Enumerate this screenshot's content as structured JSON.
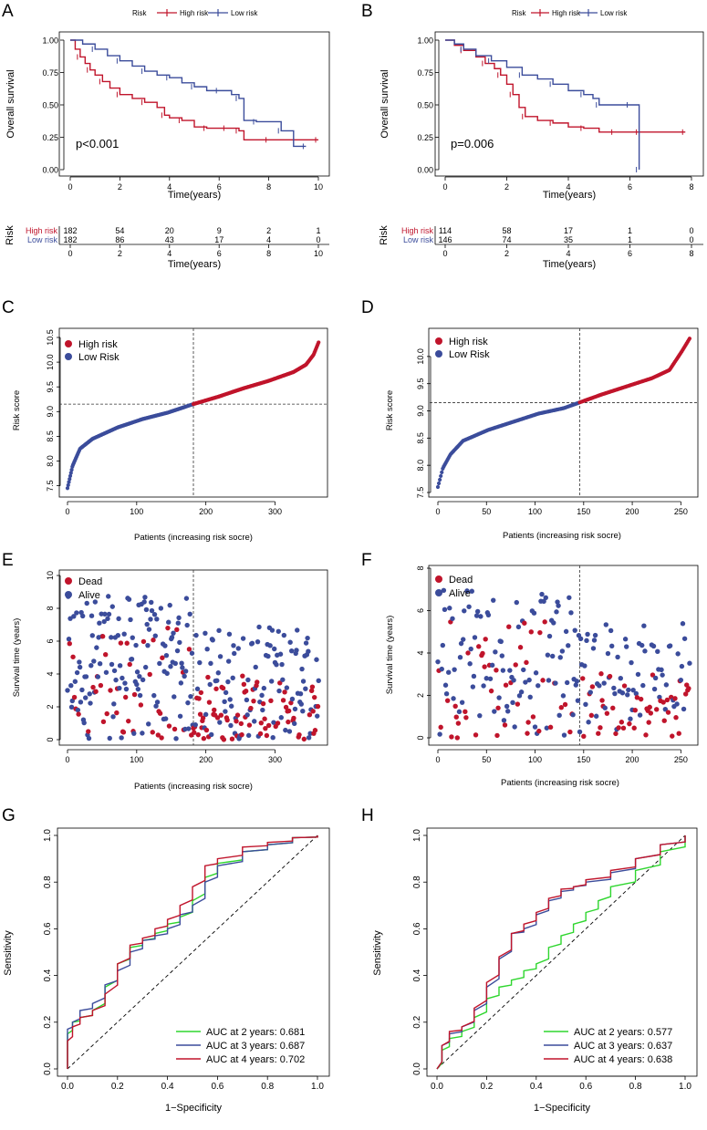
{
  "colors": {
    "high": "#C0142B",
    "low": "#3B4C9B",
    "green": "#2ED62E",
    "black": "#000000"
  },
  "chart_data": [
    {
      "panel": "A",
      "type": "line",
      "subtype": "kaplan-meier",
      "legend": {
        "title": "Risk",
        "entries": [
          "High risk",
          "Low risk"
        ]
      },
      "ylabel": "Overall survival",
      "xlabel": "Time(years)",
      "xlim": [
        0,
        10
      ],
      "ylim": [
        0,
        1
      ],
      "xticks": [
        "0",
        "2",
        "4",
        "6",
        "8",
        "10"
      ],
      "yticks": [
        "0.00",
        "0.25",
        "0.50",
        "0.75",
        "1.00"
      ],
      "pvalue": "p<0.001",
      "series": [
        {
          "name": "High risk",
          "x": [
            0,
            0.2,
            0.4,
            0.6,
            0.8,
            1,
            1.3,
            1.6,
            2,
            2.5,
            3,
            3.5,
            3.8,
            4,
            4.5,
            5,
            5.5,
            6,
            6.3,
            6.5,
            6.8,
            7,
            8,
            9,
            10
          ],
          "y": [
            1,
            0.93,
            0.87,
            0.82,
            0.77,
            0.73,
            0.68,
            0.63,
            0.58,
            0.55,
            0.52,
            0.48,
            0.42,
            0.4,
            0.38,
            0.33,
            0.32,
            0.32,
            0.32,
            0.32,
            0.3,
            0.23,
            0.23,
            0.23,
            0.23
          ]
        },
        {
          "name": "Low risk",
          "x": [
            0,
            0.5,
            1,
            1.5,
            2,
            2.5,
            3,
            3.5,
            4,
            4.5,
            5,
            5.5,
            6,
            6.5,
            6.8,
            7,
            7.5,
            8,
            8.5,
            9,
            9.5
          ],
          "y": [
            1,
            0.97,
            0.93,
            0.88,
            0.84,
            0.8,
            0.76,
            0.73,
            0.71,
            0.67,
            0.64,
            0.61,
            0.61,
            0.58,
            0.55,
            0.38,
            0.37,
            0.37,
            0.3,
            0.18,
            0.18
          ]
        }
      ],
      "risk_table": {
        "ylabel": "Risk",
        "xlabel": "Time(years)",
        "rows": [
          {
            "label": "High risk",
            "counts": [
              "182",
              "54",
              "20",
              "9",
              "2",
              "1"
            ]
          },
          {
            "label": "Low risk",
            "counts": [
              "182",
              "86",
              "43",
              "17",
              "4",
              "0"
            ]
          }
        ]
      }
    },
    {
      "panel": "B",
      "type": "line",
      "subtype": "kaplan-meier",
      "legend": {
        "title": "Risk",
        "entries": [
          "High risk",
          "Low risk"
        ]
      },
      "ylabel": "Overall survival",
      "xlabel": "Time(years)",
      "xlim": [
        0,
        8
      ],
      "ylim": [
        0,
        1
      ],
      "xticks": [
        "0",
        "2",
        "4",
        "6",
        "8"
      ],
      "yticks": [
        "0.00",
        "0.25",
        "0.50",
        "0.75",
        "1.00"
      ],
      "pvalue": "p=0.006",
      "series": [
        {
          "name": "High risk",
          "x": [
            0,
            0.3,
            0.6,
            1,
            1.3,
            1.6,
            1.8,
            2,
            2.2,
            2.4,
            2.6,
            3,
            3.5,
            4,
            4.5,
            5,
            5.5,
            6,
            6.3,
            7,
            7.8
          ],
          "y": [
            1,
            0.96,
            0.92,
            0.87,
            0.82,
            0.78,
            0.73,
            0.66,
            0.58,
            0.48,
            0.41,
            0.38,
            0.36,
            0.33,
            0.32,
            0.29,
            0.29,
            0.29,
            0.29,
            0.29,
            0.29
          ]
        },
        {
          "name": "Low risk",
          "x": [
            0,
            0.3,
            0.6,
            1,
            1.5,
            2,
            2.5,
            3,
            3.5,
            4,
            4.5,
            4.8,
            5,
            5.5,
            6,
            6.3,
            6.3
          ],
          "y": [
            1,
            0.97,
            0.93,
            0.88,
            0.84,
            0.79,
            0.73,
            0.7,
            0.66,
            0.61,
            0.58,
            0.55,
            0.5,
            0.5,
            0.5,
            0.5,
            0.0
          ]
        }
      ],
      "risk_table": {
        "ylabel": "Risk",
        "xlabel": "Time(years)",
        "rows": [
          {
            "label": "High risk",
            "counts": [
              "114",
              "58",
              "17",
              "1",
              "0"
            ]
          },
          {
            "label": "Low risk",
            "counts": [
              "146",
              "74",
              "35",
              "1",
              "0"
            ]
          }
        ]
      }
    },
    {
      "panel": "C",
      "type": "scatter",
      "subtype": "risk-score-curve",
      "legend": [
        "High risk",
        "Low Risk"
      ],
      "ylabel": "Risk score",
      "xlabel": "Patients (increasing risk socre)",
      "xlim": [
        0,
        364
      ],
      "ylim": [
        7.4,
        10.5
      ],
      "n": 364,
      "cutoff_index": 182,
      "cutoff_value": 9.15,
      "xticks": [
        "0",
        "100",
        "200",
        "300"
      ],
      "yticks": [
        "7.5",
        "8.0",
        "8.5",
        "9.0",
        "9.5",
        "10.0",
        "10.5"
      ],
      "quantile_x": [
        0,
        0.02,
        0.05,
        0.1,
        0.2,
        0.3,
        0.4,
        0.5,
        0.6,
        0.7,
        0.8,
        0.9,
        0.95,
        0.98,
        1
      ],
      "quantile_y": [
        7.45,
        7.9,
        8.25,
        8.45,
        8.68,
        8.85,
        8.98,
        9.15,
        9.3,
        9.47,
        9.62,
        9.8,
        9.95,
        10.15,
        10.4
      ]
    },
    {
      "panel": "D",
      "type": "scatter",
      "subtype": "risk-score-curve",
      "legend": [
        "High risk",
        "Low Risk"
      ],
      "ylabel": "Risk score",
      "xlabel": "Patients (increasing risk socre)",
      "xlim": [
        0,
        260
      ],
      "ylim": [
        7.5,
        10.4
      ],
      "n": 260,
      "cutoff_index": 146,
      "cutoff_value": 9.15,
      "xticks": [
        "0",
        "50",
        "100",
        "150",
        "200",
        "250"
      ],
      "yticks": [
        "7.5",
        "8.0",
        "8.5",
        "9.0",
        "9.5",
        "10.0"
      ],
      "quantile_x": [
        0,
        0.02,
        0.05,
        0.1,
        0.2,
        0.3,
        0.4,
        0.5,
        0.56,
        0.65,
        0.75,
        0.85,
        0.92,
        0.97,
        1
      ],
      "quantile_y": [
        7.6,
        7.95,
        8.2,
        8.45,
        8.65,
        8.8,
        8.95,
        9.05,
        9.15,
        9.3,
        9.45,
        9.6,
        9.75,
        10.1,
        10.33
      ]
    },
    {
      "panel": "E",
      "type": "scatter",
      "subtype": "survival-status",
      "legend": [
        "Dead",
        "Alive"
      ],
      "ylabel": "Survival time (years)",
      "xlabel": "Patients (increasing risk socre)",
      "xlim": [
        0,
        364
      ],
      "ylim": [
        0,
        10
      ],
      "n": 364,
      "cutoff_index": 182,
      "xticks": [
        "0",
        "100",
        "200",
        "300"
      ],
      "yticks": [
        "0",
        "2",
        "4",
        "6",
        "8",
        "10"
      ]
    },
    {
      "panel": "F",
      "type": "scatter",
      "subtype": "survival-status",
      "legend": [
        "Dead",
        "Alive"
      ],
      "ylabel": "Survival time (years)",
      "xlabel": "Patients (increasing risk socre)",
      "xlim": [
        0,
        260
      ],
      "ylim": [
        0,
        8
      ],
      "n": 260,
      "cutoff_index": 146,
      "xticks": [
        "0",
        "50",
        "100",
        "150",
        "200",
        "250"
      ],
      "yticks": [
        "0",
        "2",
        "4",
        "6",
        "8"
      ]
    },
    {
      "panel": "G",
      "type": "line",
      "subtype": "roc",
      "ylabel": "Sensitivity",
      "xlabel": "1−Specificity",
      "xlim": [
        0,
        1
      ],
      "ylim": [
        0,
        1
      ],
      "xticks": [
        "0.0",
        "0.2",
        "0.4",
        "0.6",
        "0.8",
        "1.0"
      ],
      "yticks": [
        "0.0",
        "0.2",
        "0.4",
        "0.6",
        "0.8",
        "1.0"
      ],
      "series": [
        {
          "name": "AUC at 2 years: 0.681",
          "auc": 0.681,
          "x": [
            0,
            0,
            0.02,
            0.05,
            0.1,
            0.15,
            0.2,
            0.25,
            0.3,
            0.35,
            0.4,
            0.45,
            0.5,
            0.55,
            0.6,
            0.7,
            0.8,
            0.9,
            1
          ],
          "y": [
            0,
            0.15,
            0.2,
            0.22,
            0.25,
            0.35,
            0.45,
            0.52,
            0.55,
            0.58,
            0.62,
            0.65,
            0.72,
            0.82,
            0.88,
            0.93,
            0.96,
            0.99,
            1
          ]
        },
        {
          "name": "AUC at 3 years: 0.687",
          "auc": 0.687,
          "x": [
            0,
            0,
            0.02,
            0.05,
            0.1,
            0.15,
            0.2,
            0.25,
            0.3,
            0.35,
            0.4,
            0.45,
            0.5,
            0.55,
            0.6,
            0.7,
            0.8,
            0.9,
            1
          ],
          "y": [
            0,
            0.17,
            0.2,
            0.25,
            0.28,
            0.36,
            0.42,
            0.5,
            0.55,
            0.57,
            0.6,
            0.66,
            0.7,
            0.8,
            0.87,
            0.93,
            0.96,
            0.99,
            1
          ]
        },
        {
          "name": "AUC at 4 years: 0.702",
          "auc": 0.702,
          "x": [
            0,
            0,
            0.02,
            0.05,
            0.1,
            0.15,
            0.2,
            0.25,
            0.3,
            0.35,
            0.4,
            0.45,
            0.5,
            0.55,
            0.6,
            0.7,
            0.8,
            0.9,
            1
          ],
          "y": [
            0,
            0.12,
            0.18,
            0.22,
            0.25,
            0.32,
            0.45,
            0.53,
            0.56,
            0.6,
            0.64,
            0.7,
            0.78,
            0.87,
            0.9,
            0.95,
            0.97,
            0.99,
            1
          ]
        }
      ]
    },
    {
      "panel": "H",
      "type": "line",
      "subtype": "roc",
      "ylabel": "Sensitivity",
      "xlabel": "1−Specificity",
      "xlim": [
        0,
        1
      ],
      "ylim": [
        0,
        1
      ],
      "xticks": [
        "0.0",
        "0.2",
        "0.4",
        "0.6",
        "0.8",
        "1.0"
      ],
      "yticks": [
        "0.0",
        "0.2",
        "0.4",
        "0.6",
        "0.8",
        "1.0"
      ],
      "series": [
        {
          "name": "AUC at 2 years: 0.577",
          "auc": 0.577,
          "x": [
            0,
            0.02,
            0.05,
            0.1,
            0.15,
            0.2,
            0.25,
            0.3,
            0.35,
            0.4,
            0.45,
            0.5,
            0.55,
            0.6,
            0.65,
            0.7,
            0.8,
            0.9,
            1
          ],
          "y": [
            0,
            0.08,
            0.13,
            0.16,
            0.22,
            0.3,
            0.35,
            0.38,
            0.42,
            0.45,
            0.52,
            0.57,
            0.62,
            0.67,
            0.72,
            0.78,
            0.85,
            0.93,
            1
          ]
        },
        {
          "name": "AUC at 3 years: 0.637",
          "auc": 0.637,
          "x": [
            0,
            0.02,
            0.05,
            0.1,
            0.15,
            0.2,
            0.25,
            0.3,
            0.35,
            0.4,
            0.45,
            0.5,
            0.55,
            0.6,
            0.7,
            0.8,
            0.9,
            1
          ],
          "y": [
            0,
            0.1,
            0.15,
            0.18,
            0.25,
            0.35,
            0.47,
            0.58,
            0.6,
            0.66,
            0.72,
            0.76,
            0.78,
            0.8,
            0.84,
            0.9,
            0.96,
            1
          ]
        },
        {
          "name": "AUC at 4 years: 0.638",
          "auc": 0.638,
          "x": [
            0,
            0.02,
            0.05,
            0.1,
            0.15,
            0.2,
            0.25,
            0.3,
            0.35,
            0.4,
            0.45,
            0.5,
            0.55,
            0.6,
            0.7,
            0.8,
            0.9,
            1
          ],
          "y": [
            0,
            0.1,
            0.16,
            0.18,
            0.26,
            0.37,
            0.48,
            0.58,
            0.62,
            0.67,
            0.73,
            0.77,
            0.78,
            0.81,
            0.85,
            0.9,
            0.96,
            1
          ]
        }
      ]
    }
  ]
}
